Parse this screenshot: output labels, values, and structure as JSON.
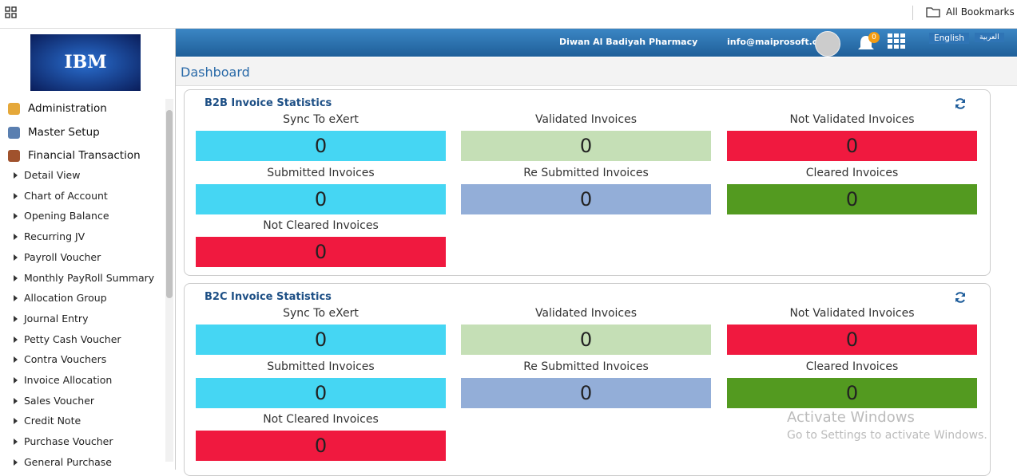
{
  "browser_bar": {
    "bookmarks": "All Bookmarks"
  },
  "header": {
    "company": "Diwan Al Badiyah Pharmacy",
    "email": "info@maiprosoft.com",
    "notifications": 0,
    "languages": [
      "English",
      "العربية"
    ]
  },
  "logo": "IBM",
  "sidebar": {
    "sections": [
      "Administration",
      "Master Setup",
      "Financial Transaction"
    ],
    "items": [
      "Detail View",
      "Chart of Account",
      "Opening Balance",
      "Recurring JV",
      "Payroll Voucher",
      "Monthly PayRoll Summary",
      "Allocation Group",
      "Journal Entry",
      "Petty Cash Voucher",
      "Contra Vouchers",
      "Invoice Allocation",
      "Sales Voucher",
      "Credit Note",
      "Purchase Voucher",
      "General Purchase"
    ]
  },
  "page_title": "Dashboard",
  "panels": [
    {
      "title": "B2B Invoice Statistics",
      "tiles": [
        {
          "label": "Sync To eXert",
          "value": 0,
          "color": "#45d6f3"
        },
        {
          "label": "Validated Invoices",
          "value": 0,
          "color": "#c5dfb6"
        },
        {
          "label": "Not Validated Invoices",
          "value": 0,
          "color": "#f0193f"
        },
        {
          "label": "Submitted Invoices",
          "value": 0,
          "color": "#45d6f3"
        },
        {
          "label": "Re Submitted Invoices",
          "value": 0,
          "color": "#93aed8"
        },
        {
          "label": "Cleared Invoices",
          "value": 0,
          "color": "#539a20"
        },
        {
          "label": "Not Cleared Invoices",
          "value": 0,
          "color": "#f0193f"
        }
      ]
    },
    {
      "title": "B2C Invoice Statistics",
      "tiles": [
        {
          "label": "Sync To eXert",
          "value": 0,
          "color": "#45d6f3"
        },
        {
          "label": "Validated Invoices",
          "value": 0,
          "color": "#c5dfb6"
        },
        {
          "label": "Not Validated Invoices",
          "value": 0,
          "color": "#f0193f"
        },
        {
          "label": "Submitted Invoices",
          "value": 0,
          "color": "#45d6f3"
        },
        {
          "label": "Re Submitted Invoices",
          "value": 0,
          "color": "#93aed8"
        },
        {
          "label": "Cleared Invoices",
          "value": 0,
          "color": "#539a20"
        },
        {
          "label": "Not Cleared Invoices",
          "value": 0,
          "color": "#f0193f"
        }
      ]
    }
  ],
  "watermark": {
    "title": "Activate Windows",
    "subtitle": "Go to Settings to activate Windows."
  }
}
